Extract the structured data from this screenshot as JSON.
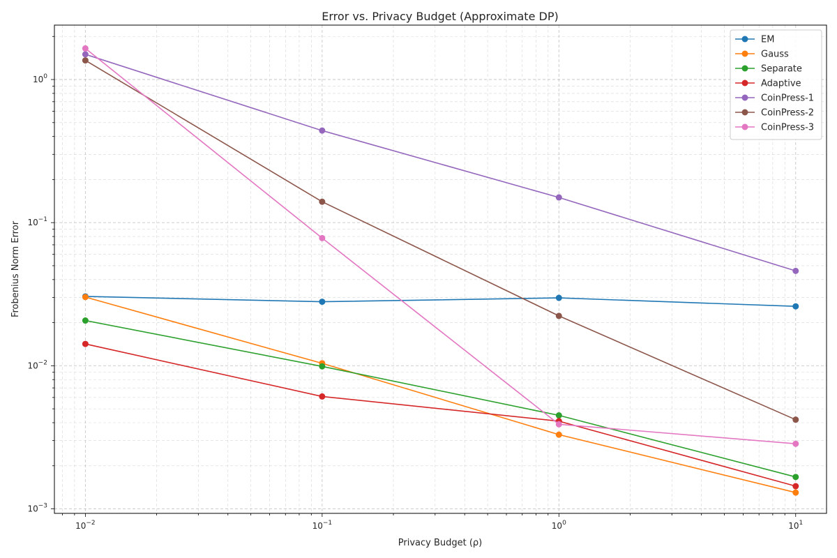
{
  "chart_data": {
    "type": "line",
    "title": "Error vs. Privacy Budget (Approximate DP)",
    "xlabel": "Privacy Budget (ρ)",
    "ylabel": "Frobenius Norm Error",
    "x_scale": "log",
    "y_scale": "log",
    "xlim": [
      0.0074,
      13.5
    ],
    "ylim": [
      0.00093,
      2.4
    ],
    "grid": true,
    "legend_position": "top-right",
    "x": [
      0.01,
      0.1,
      1,
      10
    ],
    "x_ticks": [
      {
        "value": 0.01,
        "base": "10",
        "exp": "−2"
      },
      {
        "value": 0.1,
        "base": "10",
        "exp": "−1"
      },
      {
        "value": 1,
        "base": "10",
        "exp": "0"
      },
      {
        "value": 10,
        "base": "10",
        "exp": "1"
      }
    ],
    "y_ticks": [
      {
        "value": 0.001,
        "base": "10",
        "exp": "−3"
      },
      {
        "value": 0.01,
        "base": "10",
        "exp": "−2"
      },
      {
        "value": 0.1,
        "base": "10",
        "exp": "−1"
      },
      {
        "value": 1,
        "base": "10",
        "exp": "0"
      }
    ],
    "series": [
      {
        "name": "EM",
        "color": "#1f77b4",
        "values": [
          0.0305,
          0.028,
          0.0298,
          0.026
        ]
      },
      {
        "name": "Gauss",
        "color": "#ff7f0e",
        "values": [
          0.0302,
          0.0104,
          0.0033,
          0.0013
        ]
      },
      {
        "name": "Separate",
        "color": "#2ca02c",
        "values": [
          0.0207,
          0.0099,
          0.0045,
          0.00167
        ]
      },
      {
        "name": "Adaptive",
        "color": "#d62728",
        "values": [
          0.0142,
          0.0061,
          0.0041,
          0.00144
        ]
      },
      {
        "name": "CoinPress-1",
        "color": "#9467bd",
        "values": [
          1.5,
          0.44,
          0.15,
          0.046
        ]
      },
      {
        "name": "CoinPress-2",
        "color": "#8c564b",
        "values": [
          1.36,
          0.14,
          0.0223,
          0.0042
        ]
      },
      {
        "name": "CoinPress-3",
        "color": "#e377c2",
        "values": [
          1.65,
          0.078,
          0.0039,
          0.00285
        ]
      }
    ]
  }
}
